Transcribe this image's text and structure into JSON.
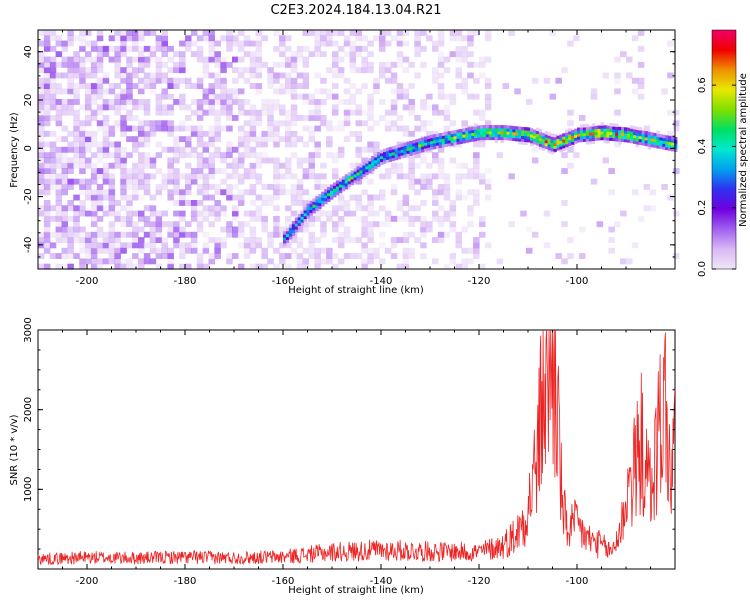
{
  "title": "C2E3.2024.184.13.04.R21",
  "chart_data": [
    {
      "type": "heatmap",
      "xlabel": "Height of straight line (km)",
      "ylabel": "Frequency (Hz)",
      "xlim": [
        -210,
        -80
      ],
      "ylim": [
        -50,
        49
      ],
      "x_ticks": [
        -200,
        -180,
        -160,
        -140,
        -120,
        -100
      ],
      "y_ticks": [
        -40,
        -20,
        0,
        20,
        40
      ],
      "colorbar": {
        "label": "Normalized spectral amplitude",
        "range": [
          0.0,
          0.78
        ],
        "ticks": [
          0.0,
          0.2,
          0.4,
          0.6
        ],
        "colormap": [
          "#f0e6f8",
          "#d9b8f5",
          "#a060f0",
          "#7000e0",
          "#3030f0",
          "#00a0f0",
          "#00e8d0",
          "#00e060",
          "#80e000",
          "#e8e800",
          "#f09000",
          "#f00000",
          "#f0006a"
        ]
      },
      "signal_track": {
        "x": [
          -160,
          -155,
          -150,
          -145,
          -140,
          -135,
          -130,
          -125,
          -120,
          -115,
          -110,
          -105,
          -100,
          -95,
          -90,
          -85,
          -80
        ],
        "frequency": [
          -38,
          -26,
          -18,
          -11,
          -4,
          -1,
          2,
          4,
          6,
          6,
          5,
          1,
          5,
          6,
          5,
          3,
          1
        ],
        "amplitude": [
          0.35,
          0.4,
          0.45,
          0.45,
          0.4,
          0.45,
          0.45,
          0.5,
          0.55,
          0.55,
          0.6,
          0.72,
          0.55,
          0.7,
          0.6,
          0.55,
          0.5
        ]
      },
      "background_noise_cutoff_x": -118
    },
    {
      "type": "line",
      "xlabel": "Height of straight line (km)",
      "ylabel": "SNR (10 * v/v)",
      "xlim": [
        -210,
        -80
      ],
      "ylim": [
        0,
        3000
      ],
      "x_ticks": [
        -200,
        -180,
        -160,
        -140,
        -120,
        -100
      ],
      "y_ticks": [
        1000,
        2000,
        3000
      ],
      "line_color": "#ee2222",
      "series": [
        {
          "x": [
            -210,
            -200,
            -190,
            -180,
            -170,
            -160,
            -150,
            -140,
            -130,
            -120,
            -115,
            -112,
            -110,
            -108,
            -107,
            -106,
            -105,
            -104,
            -103,
            -102,
            -100,
            -98,
            -95,
            -93,
            -91,
            -90,
            -88,
            -87,
            -86,
            -85,
            -84,
            -83,
            -82,
            -81,
            -80
          ],
          "values": [
            150,
            170,
            160,
            175,
            165,
            180,
            250,
            280,
            260,
            250,
            350,
            550,
            900,
            1700,
            2600,
            2900,
            3000,
            2400,
            900,
            600,
            650,
            450,
            350,
            250,
            600,
            1100,
            1500,
            1900,
            1400,
            1200,
            1600,
            2200,
            2500,
            1300,
            1800
          ]
        }
      ]
    }
  ]
}
